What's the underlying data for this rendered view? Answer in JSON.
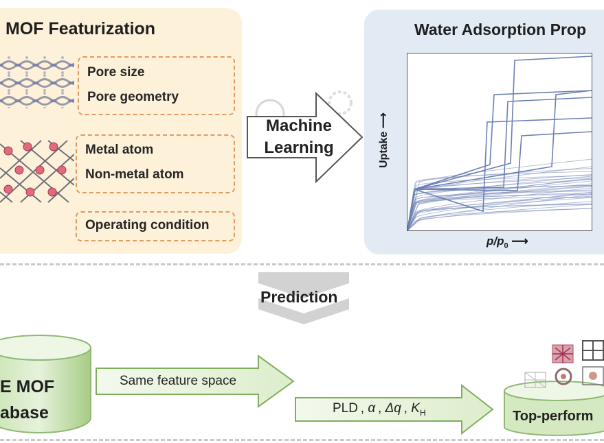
{
  "featurization": {
    "title": "MOF Featurization",
    "groups": [
      {
        "items": [
          "Pore size",
          "Pore geometry"
        ]
      },
      {
        "items": [
          "Metal atom",
          "Non-metal atom"
        ]
      },
      {
        "items": [
          "Operating condition"
        ]
      }
    ]
  },
  "machine_learning": {
    "line1": "Machine",
    "line2": "Learning"
  },
  "water_adsorption": {
    "title": "Water Adsorption Prop",
    "ylabel": "Uptake",
    "xlabel_main": "p/p",
    "xlabel_sub": "0"
  },
  "prediction_label": "Prediction",
  "database": {
    "line1": "E MOF",
    "line2": "abase"
  },
  "arrows": {
    "feature_space": "Same feature space",
    "descriptors": {
      "plain1": "PLD , ",
      "alpha": "α",
      "sep1": " , ",
      "dq": "Δq",
      "sep2": " , ",
      "k": "K",
      "k_sub": "H"
    }
  },
  "top_performers": "Top-perform",
  "colors": {
    "feat_bg": "#fdf1da",
    "dash": "#e39a5f",
    "plot_line": "#6b80b3",
    "water_bg": "#e2eaf3",
    "green_light": "#eef6e6",
    "green_dark": "#7fae5e"
  }
}
